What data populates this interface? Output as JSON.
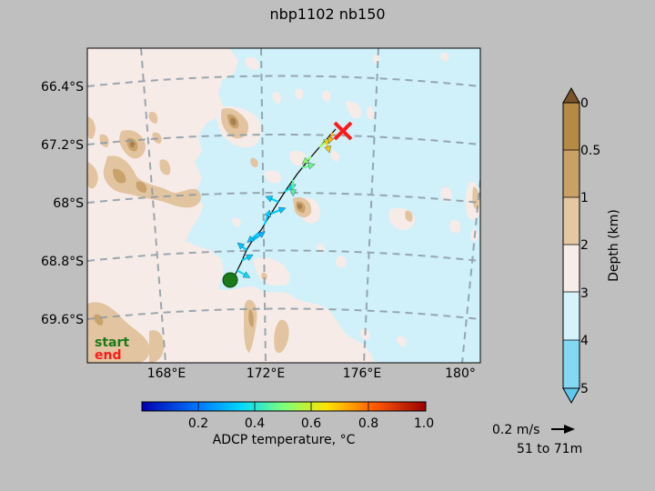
{
  "title": "nbp1102 nb150",
  "map": {
    "lat_labels": [
      "66.4°S",
      "67.2°S",
      "68°S",
      "68.8°S",
      "69.6°S"
    ],
    "lon_labels": [
      "168°E",
      "172°E",
      "176°E",
      "180°"
    ],
    "legend_start": "start",
    "legend_end": "end",
    "colors": {
      "ocean": "#d0f0fa",
      "land_light": "#f7ebe8",
      "land_mid": "#e2c4a0",
      "land_dark": "#c9a26b",
      "land_peak": "#a88050",
      "graticule": "#8a9aa3",
      "start_marker": "#1a7a1a",
      "end_marker": "#ff1a1a"
    }
  },
  "temperature_colorbar": {
    "ticks": [
      "0.2",
      "0.4",
      "0.6",
      "0.8",
      "1.0"
    ],
    "label": "ADCP temperature, °C",
    "colors": [
      "#0000b0",
      "#0078ff",
      "#00d8ff",
      "#7dff7a",
      "#ffe400",
      "#ff5a00",
      "#9a0000"
    ]
  },
  "depth_colorbar": {
    "ticks": [
      "0",
      "0.5",
      "1",
      "2",
      "3",
      "4",
      "5"
    ],
    "label": "Depth (km)",
    "colors": [
      "#7a5428",
      "#b58a45",
      "#c9a066",
      "#e5c8a2",
      "#f8ece8",
      "#d6f2fa",
      "#84d8f2",
      "#5fc8ee"
    ]
  },
  "vector_key": {
    "speed_label": "0.2 m/s",
    "depth_range": "51 to 71m"
  },
  "track": {
    "points": [
      [
        258,
        303
      ],
      [
        265,
        289
      ],
      [
        271,
        275
      ],
      [
        279,
        262
      ],
      [
        287,
        253
      ],
      [
        296,
        238
      ],
      [
        306,
        222
      ],
      [
        315,
        208
      ],
      [
        327,
        191
      ],
      [
        340,
        175
      ],
      [
        351,
        162
      ],
      [
        360,
        152
      ],
      [
        369,
        142
      ]
    ],
    "vectors": [
      {
        "t": 0.35,
        "u": 14,
        "v": 8
      },
      {
        "t": 0.32,
        "u": 12,
        "v": -6
      },
      {
        "t": 0.3,
        "u": -10,
        "v": -8
      },
      {
        "t": 0.28,
        "u": 14,
        "v": -10
      },
      {
        "t": 0.3,
        "u": -12,
        "v": 10
      },
      {
        "t": 0.33,
        "u": 6,
        "v": -16
      },
      {
        "t": 0.3,
        "u": 16,
        "v": -6
      },
      {
        "t": 0.32,
        "u": -14,
        "v": -6
      },
      {
        "t": 0.35,
        "u": 12,
        "v": -8
      },
      {
        "t": 0.45,
        "u": 0,
        "v": 18
      },
      {
        "t": 0.48,
        "u": 14,
        "v": -4
      },
      {
        "t": 0.52,
        "u": -10,
        "v": 8
      },
      {
        "t": 0.55,
        "u": 12,
        "v": -10
      },
      {
        "t": 0.7,
        "u": 4,
        "v": 14
      },
      {
        "t": 0.72,
        "u": -4,
        "v": 12
      }
    ]
  }
}
